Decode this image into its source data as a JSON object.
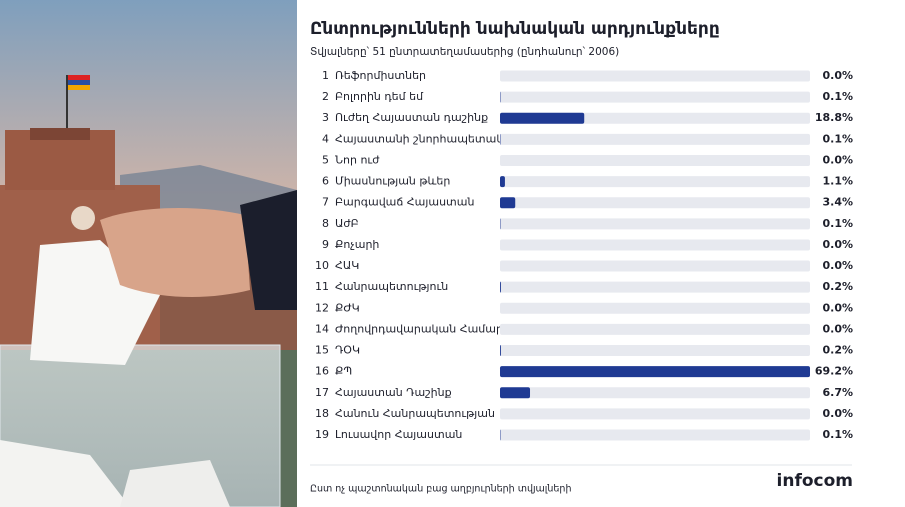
{
  "chart_data": {
    "type": "bar",
    "title": "Ընտրությունների նախնական արդյունքները",
    "subtitle": "Տվյալները՝ 51 ընտրատեղամասերից (ընդհանուր՝ 2006)",
    "numbers": [
      "1",
      "2",
      "3",
      "4",
      "5",
      "6",
      "7",
      "8",
      "9",
      "10",
      "11",
      "12",
      "14",
      "15",
      "16",
      "17",
      "18",
      "19"
    ],
    "categories": [
      "Ռեֆորմիստներ",
      "Բոլորին դեմ եմ",
      "Ուժեղ Հայաստան դաշինք",
      "Հայաստանի շնորհապետակ",
      "Նոր ուժ",
      "Միասնության թևեր",
      "Բարգավաճ Հայաստան",
      "ԱժԲ",
      "Քոչարի",
      "ՀԱԿ",
      "Հանրապետություն",
      "ՔԺԿ",
      "Ժողովրդավարական Համար",
      "ԴՕԿ",
      "ՔՊ",
      "Հայաստան Դաշինք",
      "Հանուն Հանրապետության",
      "Լուսավոր Հայաստան"
    ],
    "values": [
      0.0,
      0.1,
      18.8,
      0.1,
      0.0,
      1.1,
      3.4,
      0.1,
      0.0,
      0.0,
      0.2,
      0.0,
      0.0,
      0.2,
      69.2,
      6.7,
      0.0,
      0.1
    ],
    "value_labels": [
      "0.0%",
      "0.1%",
      "18.8%",
      "0.1%",
      "0.0%",
      "1.1%",
      "3.4%",
      "0.1%",
      "0.0%",
      "0.0%",
      "0.2%",
      "0.0%",
      "0.0%",
      "0.2%",
      "69.2%",
      "6.7%",
      "0.0%",
      "0.1%"
    ],
    "color": "#1f3a93",
    "track_color": "#e7e9ef",
    "xlim": [
      0,
      69.2
    ],
    "footnote": "Ըստ ոչ պաշտոնական բաց աղբյուրների տվյալների",
    "logo": "infocom"
  }
}
